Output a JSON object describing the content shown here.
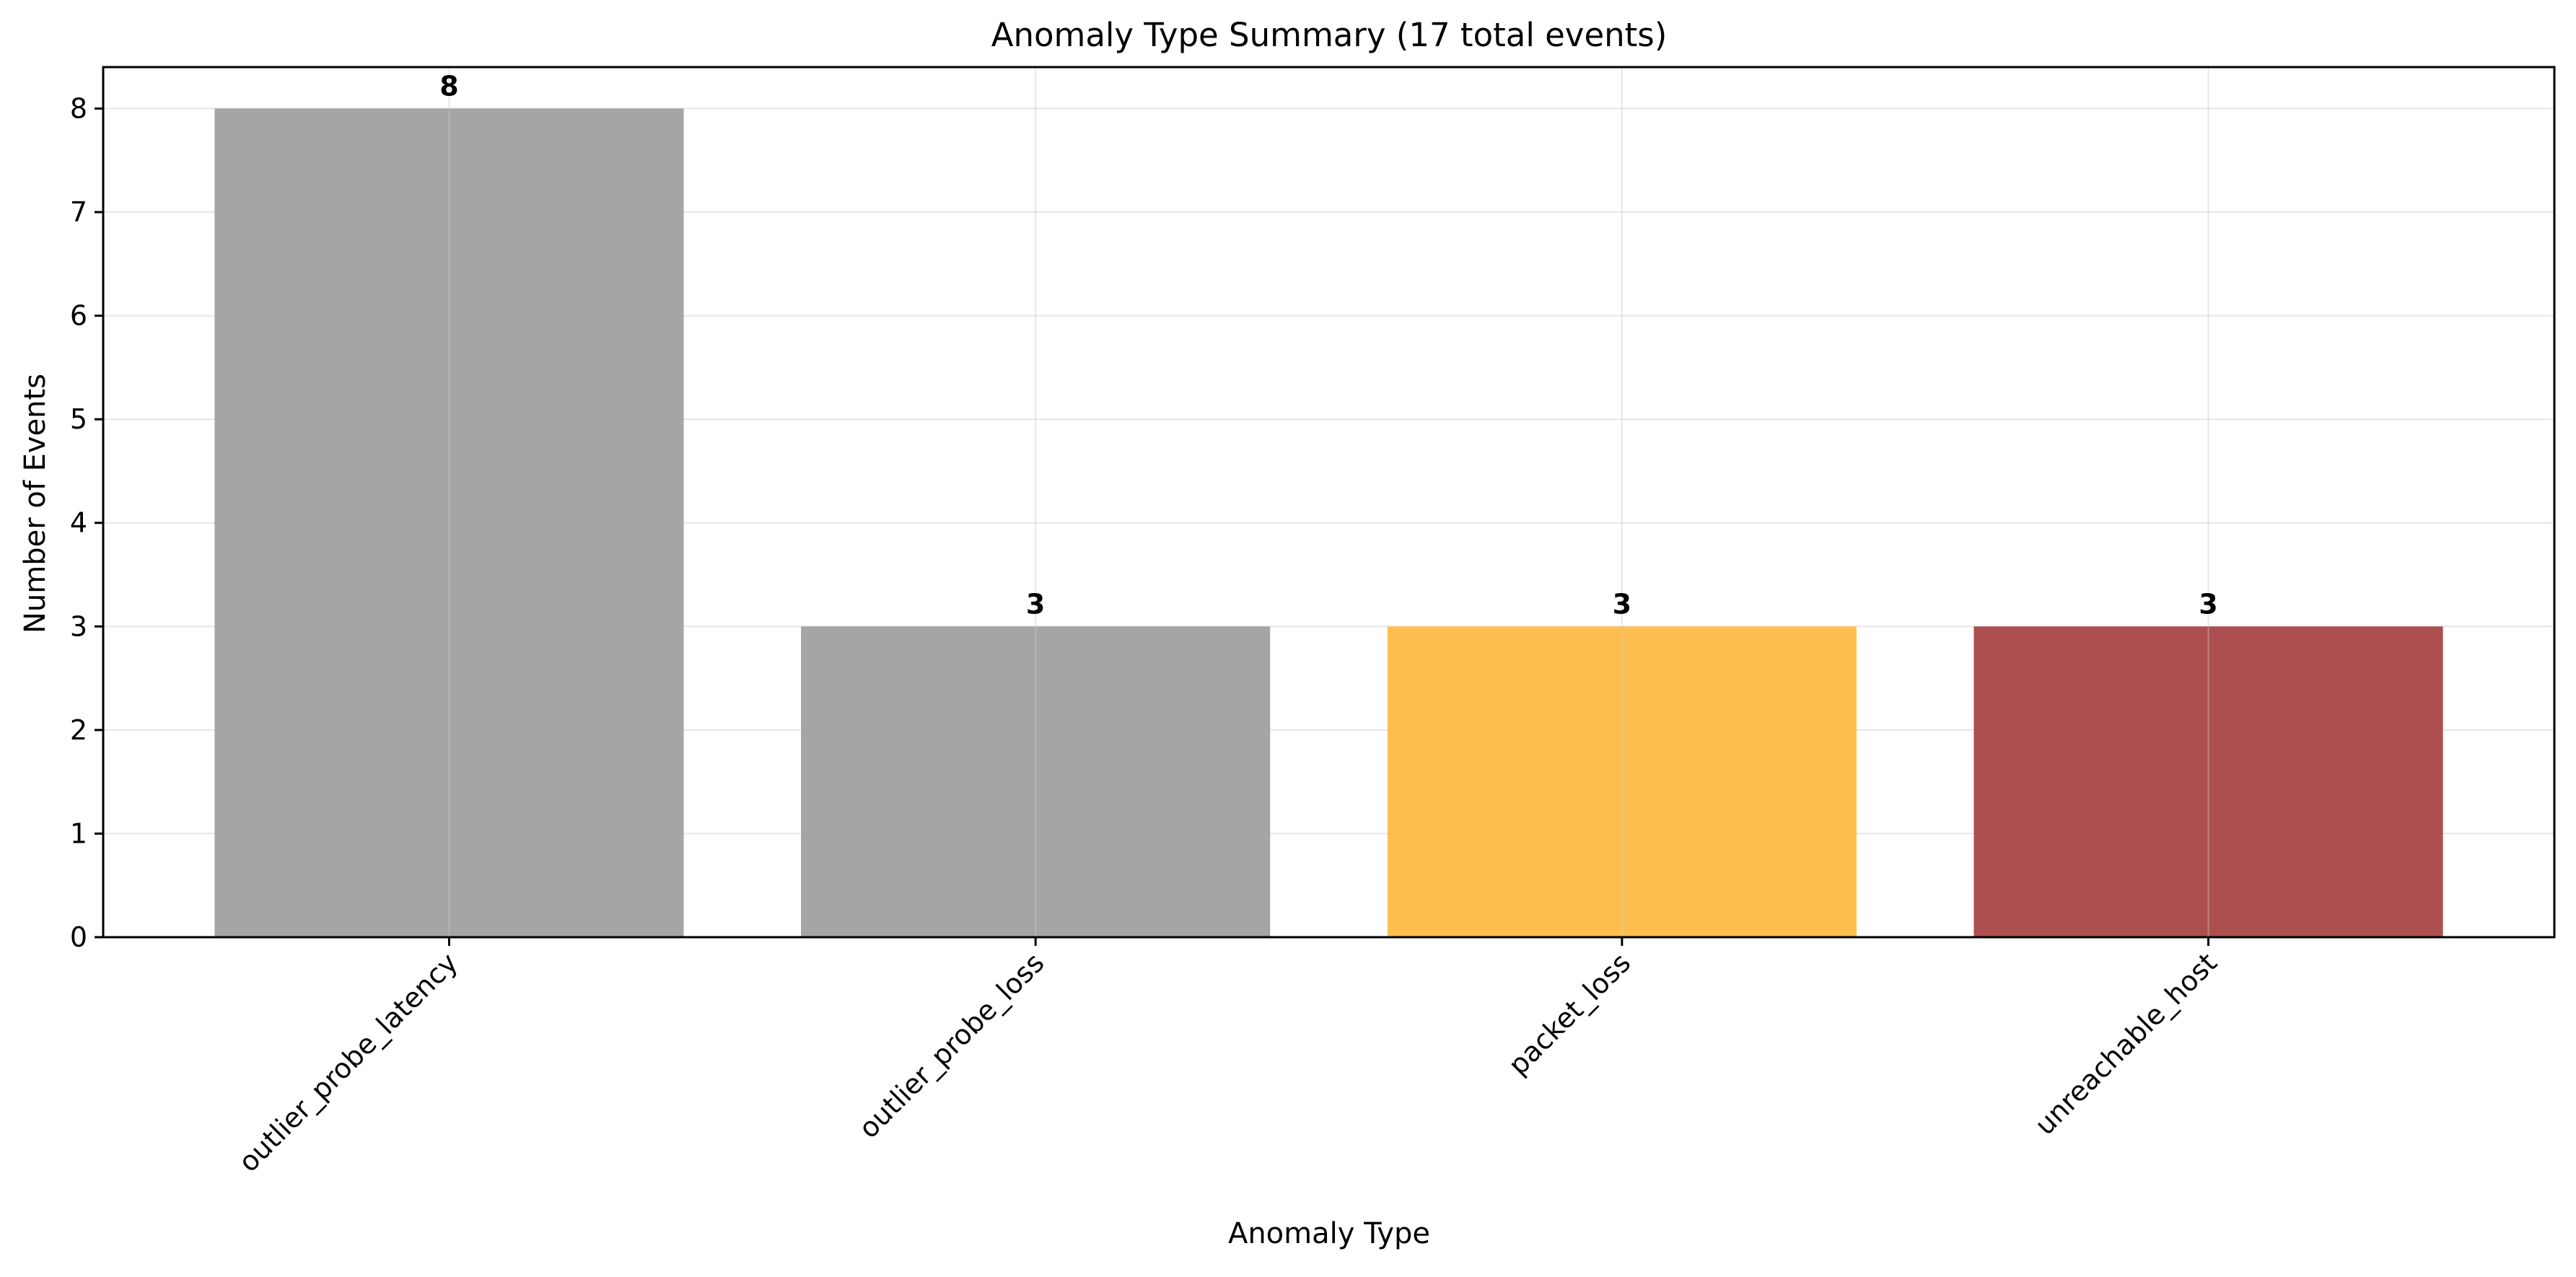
{
  "chart_data": {
    "type": "bar",
    "title": "Anomaly Type Summary (17 total events)",
    "xlabel": "Anomaly Type",
    "ylabel": "Number of Events",
    "categories": [
      "outlier_probe_latency",
      "outlier_probe_loss",
      "packet_loss",
      "unreachable_host"
    ],
    "values": [
      8,
      3,
      3,
      3
    ],
    "colors": [
      "#a5a5a5",
      "#a5a5a5",
      "#ffbf4f",
      "#ad4f4f"
    ],
    "ylim": [
      0,
      8.4
    ],
    "yticks": [
      0,
      1,
      2,
      3,
      4,
      5,
      6,
      7,
      8
    ],
    "grid": true,
    "legend": "none",
    "data_labels": true
  }
}
